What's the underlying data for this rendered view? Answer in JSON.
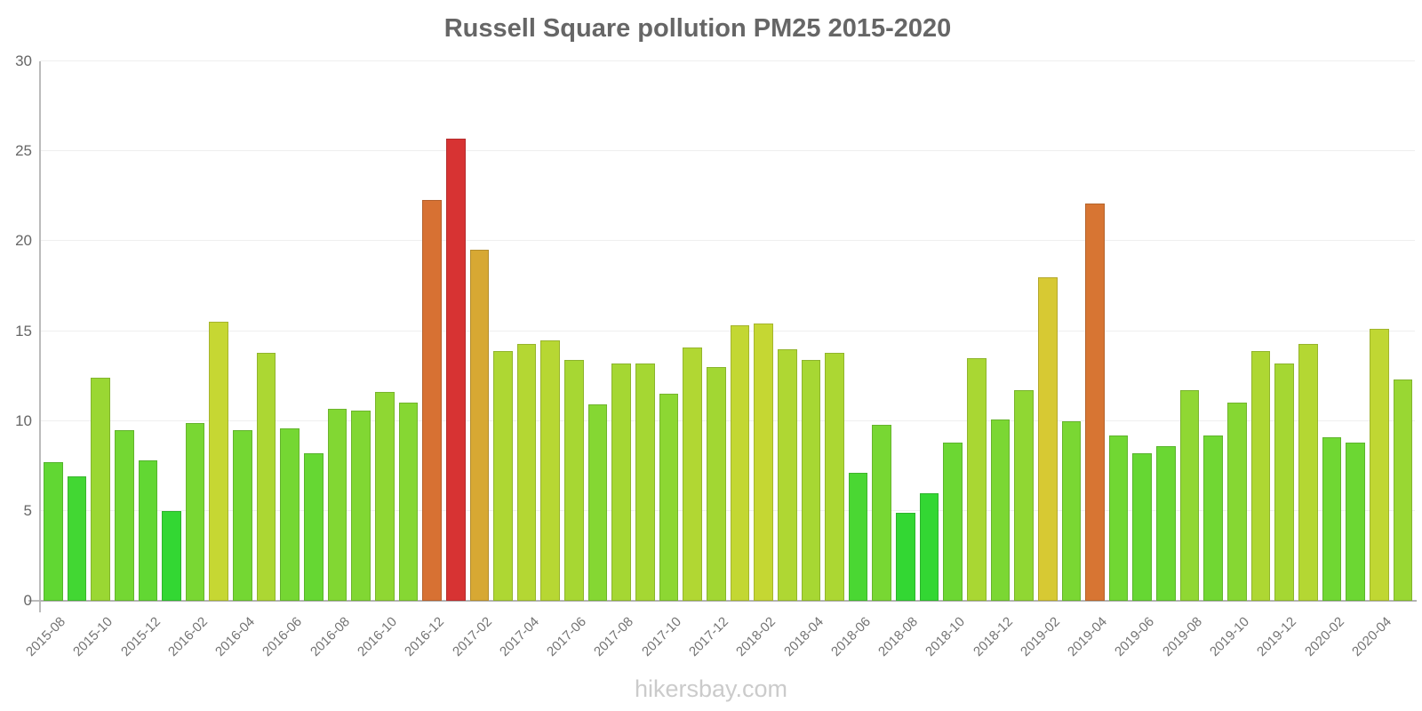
{
  "title": "Russell Square pollution PM25 2015-2020",
  "watermark": "hikersbay.com",
  "chart_data": {
    "type": "bar",
    "title": "Russell Square pollution PM25 2015-2020",
    "xlabel": "",
    "ylabel": "",
    "ylim": [
      0,
      30
    ],
    "yticks": [
      0,
      5,
      10,
      15,
      20,
      25,
      30
    ],
    "grid": "horizontal",
    "legend": "none",
    "categories": [
      "2015-08",
      "2015-09",
      "2015-10",
      "2015-11",
      "2015-12",
      "2016-01",
      "2016-02",
      "2016-03",
      "2016-04",
      "2016-05",
      "2016-06",
      "2016-07",
      "2016-08",
      "2016-09",
      "2016-10",
      "2016-11",
      "2016-12",
      "2017-01",
      "2017-02",
      "2017-03",
      "2017-04",
      "2017-05",
      "2017-06",
      "2017-07",
      "2017-08",
      "2017-09",
      "2017-10",
      "2017-11",
      "2017-12",
      "2018-01",
      "2018-02",
      "2018-03",
      "2018-04",
      "2018-05",
      "2018-06",
      "2018-07",
      "2018-08",
      "2018-09",
      "2018-10",
      "2018-11",
      "2018-12",
      "2019-01",
      "2019-02",
      "2019-03",
      "2019-04",
      "2019-05",
      "2019-06",
      "2019-07",
      "2019-08",
      "2019-09",
      "2019-10",
      "2019-11",
      "2019-12",
      "2020-01",
      "2020-02",
      "2020-03",
      "2020-04",
      "2020-05"
    ],
    "values": [
      7.7,
      6.9,
      12.4,
      9.5,
      7.8,
      5.0,
      9.9,
      15.5,
      9.5,
      13.8,
      9.6,
      8.2,
      10.7,
      10.6,
      11.6,
      11.0,
      22.3,
      25.7,
      19.5,
      13.9,
      14.3,
      14.5,
      13.4,
      10.9,
      13.2,
      13.2,
      11.5,
      14.1,
      13.0,
      15.3,
      15.4,
      14.0,
      13.4,
      13.8,
      7.1,
      9.8,
      4.9,
      6.0,
      8.8,
      13.5,
      10.1,
      11.7,
      18.0,
      10.0,
      22.1,
      9.2,
      8.2,
      8.6,
      11.7,
      9.2,
      11.0,
      13.9,
      13.2,
      14.3,
      9.1,
      8.8,
      15.1,
      12.3
    ],
    "x_tick_labels": [
      "2015-08",
      "2015-10",
      "2015-12",
      "2016-02",
      "2016-04",
      "2016-06",
      "2016-08",
      "2016-10",
      "2016-12",
      "2017-02",
      "2017-04",
      "2017-06",
      "2017-08",
      "2017-10",
      "2017-12",
      "2018-02",
      "2018-04",
      "2018-06",
      "2018-08",
      "2018-10",
      "2018-12",
      "2019-02",
      "2019-04",
      "2019-06",
      "2019-08",
      "2019-10",
      "2019-12",
      "2020-02",
      "2020-04"
    ],
    "x_tick_every": 2,
    "color_scale": {
      "description": "bar fill hue (hsl degrees) interpolated from value",
      "hue_anchors": [
        [
          0,
          120
        ],
        [
          6.5,
          120
        ],
        [
          7.7,
          103
        ],
        [
          8.8,
          99
        ],
        [
          9.5,
          96
        ],
        [
          10.7,
          91
        ],
        [
          12.4,
          82
        ],
        [
          13.9,
          75
        ],
        [
          15.5,
          66
        ],
        [
          18.0,
          55
        ],
        [
          19.5,
          43
        ],
        [
          22.3,
          23
        ],
        [
          25.7,
          0
        ],
        [
          30,
          0
        ]
      ],
      "saturation_pct": 67,
      "lightness_pct": 52,
      "border_saturation_pct": 60,
      "border_lightness_pct": 44,
      "sample_colors": {
        "low_green": "#33d933",
        "mid_green": "#7fd435",
        "yellow_green": "#9ad42e",
        "yellow": "#d7c937",
        "gold": "#d9aa31",
        "orange": "#db7434",
        "red": "#d93434"
      }
    }
  },
  "style_colors": {
    "title_text": "#666666",
    "y_label_text": "#666666",
    "x_label_text": "#737373",
    "watermark_text": "#cbcbcb",
    "axis_line": "#b3b3b3",
    "gridline": "#efefef",
    "background": "#ffffff"
  }
}
